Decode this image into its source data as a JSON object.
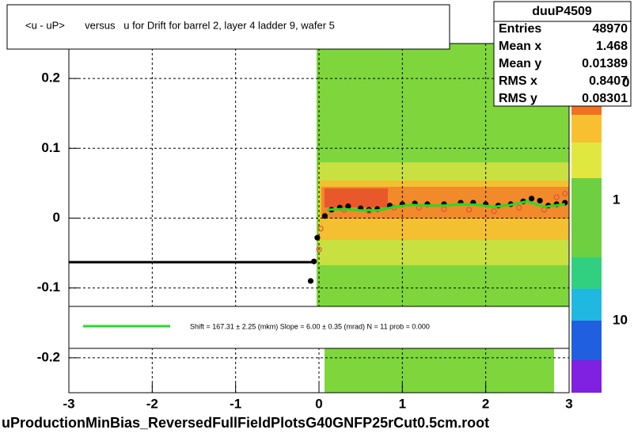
{
  "chart_data": {
    "type": "profile",
    "title": "<u - uP>       versus   u for Drift for barrel 2, layer 4 ladder 9, wafer 5",
    "footer": "uProductionMinBias_ReversedFullFieldPlotsG40GNFP25rCut0.5cm.root",
    "xlim": [
      -3,
      3
    ],
    "ylim": [
      -0.25,
      0.25
    ],
    "xticks": [
      -3,
      -2,
      -1,
      0,
      1,
      2,
      3
    ],
    "yticks": [
      0.2,
      0.1,
      0,
      -0.1,
      -0.2
    ],
    "grid": true,
    "series": [
      {
        "style": "line",
        "color": "#000000",
        "x": [
          -3,
          -0.05
        ],
        "values": [
          -0.063,
          -0.063
        ]
      },
      {
        "style": "points",
        "color": "#000000",
        "x": [
          -0.1,
          -0.06,
          -0.02,
          0.07,
          0.15,
          0.25,
          0.35,
          0.5,
          0.6,
          0.7,
          0.85,
          1.0,
          1.15,
          1.3,
          1.5,
          1.7,
          1.85,
          2.0,
          2.15,
          2.3,
          2.45,
          2.55,
          2.65,
          2.75,
          2.85,
          2.95
        ],
        "values": [
          -0.09,
          -0.062,
          -0.028,
          0.003,
          0.012,
          0.015,
          0.017,
          0.014,
          0.012,
          0.013,
          0.018,
          0.02,
          0.021,
          0.02,
          0.02,
          0.022,
          0.022,
          0.02,
          0.018,
          0.02,
          0.024,
          0.028,
          0.025,
          0.018,
          0.02,
          0.022
        ]
      },
      {
        "style": "circles",
        "color": "#e8503a",
        "x": [
          0.0,
          0.02,
          0.3,
          0.6,
          0.9,
          1.2,
          1.5,
          1.8,
          2.1,
          2.4,
          2.7,
          2.85,
          2.95
        ],
        "values": [
          -0.045,
          -0.015,
          0.012,
          0.01,
          0.015,
          0.015,
          0.013,
          0.012,
          0.01,
          0.015,
          0.012,
          0.03,
          0.035
        ]
      },
      {
        "style": "fit",
        "color": "#22dd22",
        "x": [
          0.1,
          0.3,
          0.5,
          0.7,
          0.9,
          1.1,
          1.3,
          1.5,
          1.7,
          1.9,
          2.1,
          2.3,
          2.5,
          2.7,
          2.95
        ],
        "values": [
          0.012,
          0.013,
          0.011,
          0.011,
          0.016,
          0.019,
          0.018,
          0.018,
          0.02,
          0.019,
          0.016,
          0.019,
          0.024,
          0.016,
          0.02
        ]
      }
    ],
    "legend_text": "Shift =   167.31 ± 2.25 (mkm) Slope =     6.00 ± 0.35 (mrad)  N = 11 prob = 0.000",
    "palette_labels": [
      "0",
      "1",
      "10"
    ],
    "stats": {
      "title": "duuP4509",
      "rows": [
        [
          "Entries",
          "48970"
        ],
        [
          "Mean x",
          "1.468"
        ],
        [
          "Mean y",
          "0.01389"
        ],
        [
          "RMS x",
          "0.8407"
        ],
        [
          "RMS y",
          "0.08301"
        ]
      ]
    }
  }
}
